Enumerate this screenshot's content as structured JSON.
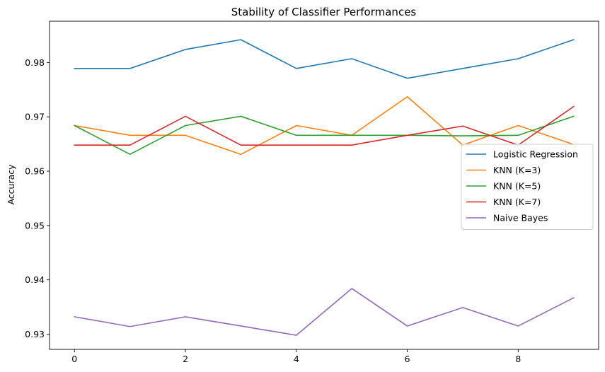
{
  "chart_data": {
    "type": "line",
    "title": "Stability of Classifier Performances",
    "xlabel": "",
    "ylabel": "Accuracy",
    "xlim": [
      -0.45,
      9.45
    ],
    "ylim": [
      0.9272,
      0.9876
    ],
    "x": [
      0,
      1,
      2,
      3,
      4,
      5,
      6,
      7,
      8,
      9
    ],
    "xticks": [
      0,
      2,
      4,
      6,
      8
    ],
    "yticks": [
      0.93,
      0.94,
      0.95,
      0.96,
      0.97,
      0.98
    ],
    "grid": false,
    "legend_position": "center-right",
    "series": [
      {
        "name": "Logistic Regression",
        "color": "#1f77b4",
        "values": [
          0.9789,
          0.9789,
          0.9824,
          0.9842,
          0.9789,
          0.9807,
          0.9771,
          0.9789,
          0.9807,
          0.9842
        ]
      },
      {
        "name": "KNN (K=3)",
        "color": "#ff7f0e",
        "values": [
          0.9684,
          0.9666,
          0.9666,
          0.9631,
          0.9684,
          0.9666,
          0.9737,
          0.9648,
          0.9684,
          0.9649
        ]
      },
      {
        "name": "KNN (K=5)",
        "color": "#2ca02c",
        "values": [
          0.9684,
          0.9631,
          0.9684,
          0.9701,
          0.9666,
          0.9666,
          0.9666,
          0.9665,
          0.9666,
          0.9701
        ]
      },
      {
        "name": "KNN (K=7)",
        "color": "#d62728",
        "values": [
          0.9648,
          0.9648,
          0.9701,
          0.9648,
          0.9648,
          0.9648,
          0.9666,
          0.9683,
          0.9648,
          0.9719
        ]
      },
      {
        "name": "Naive Bayes",
        "color": "#9467bd",
        "values": [
          0.9332,
          0.9314,
          0.9332,
          0.9315,
          0.9298,
          0.9384,
          0.9315,
          0.9349,
          0.9315,
          0.9367
        ]
      }
    ]
  }
}
